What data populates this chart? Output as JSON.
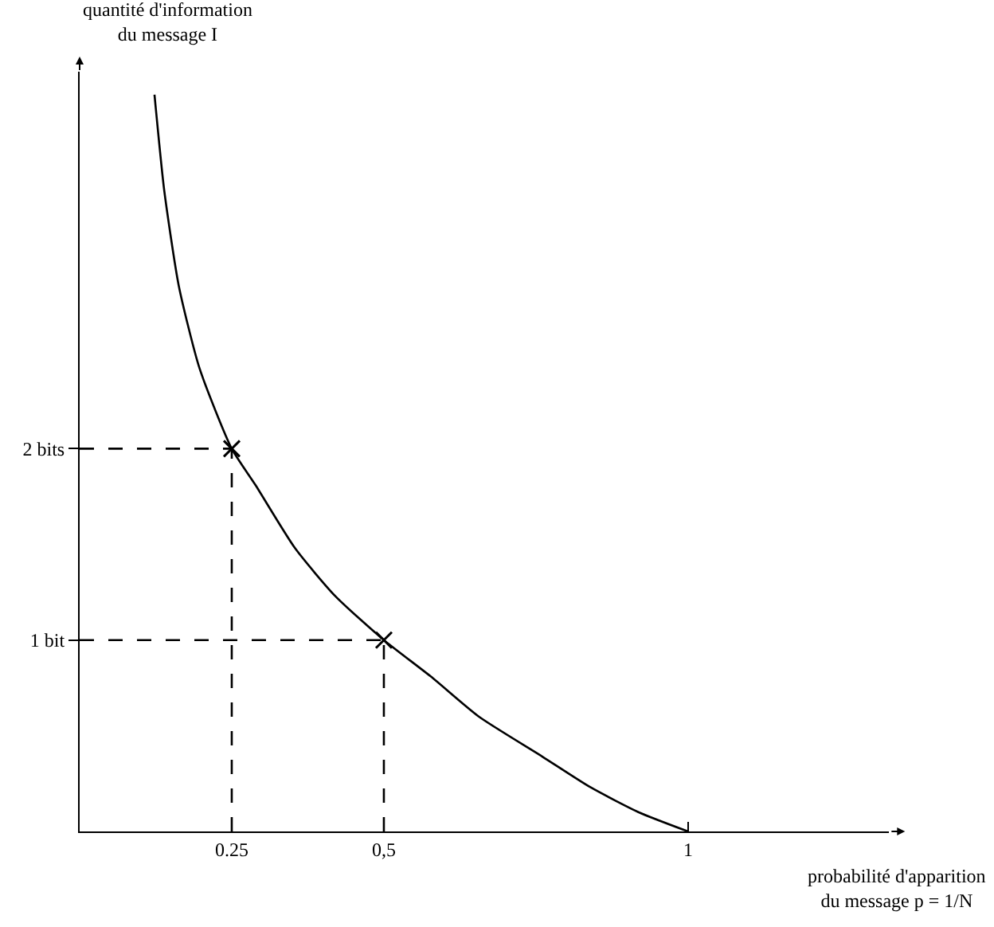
{
  "chart_data": {
    "type": "line",
    "xlabel": "probabilité d'apparition\ndu message p = 1/N",
    "ylabel": "quantité d'information\ndu message I",
    "xlim": [
      0,
      1.33
    ],
    "ylim": [
      0,
      3.97
    ],
    "xticks": [
      {
        "value": 0.25,
        "label": "0.25"
      },
      {
        "value": 0.5,
        "label": "0,5"
      },
      1
    ],
    "yticks": [
      {
        "value": 1,
        "label": "1 bit"
      },
      {
        "value": 2,
        "label": "2 bits"
      }
    ],
    "grid": false,
    "series": [
      {
        "type": "line",
        "color": "#000000",
        "line_style": "solid",
        "marker": "none",
        "x": [
          0.123,
          0.139,
          0.163,
          0.197,
          0.25,
          0.289,
          0.354,
          0.42,
          0.5,
          0.577,
          0.656,
          0.761,
          0.84,
          0.919,
          1
        ],
        "values": [
          3.85,
          3.35,
          2.85,
          2.42,
          2,
          1.81,
          1.48,
          1.23,
          1,
          0.81,
          0.6,
          0.39,
          0.23,
          0.1,
          0
        ]
      },
      {
        "type": "line",
        "color": "#000000",
        "line_style": "dashed",
        "marker": "none",
        "x": [
          0.25,
          0.25
        ],
        "values": [
          0,
          2
        ]
      },
      {
        "type": "line",
        "color": "#000000",
        "line_style": "dashed",
        "marker": "none",
        "x": [
          0,
          0.25
        ],
        "values": [
          2,
          2
        ]
      },
      {
        "type": "line",
        "color": "#000000",
        "line_style": "dashed",
        "marker": "none",
        "x": [
          0.5,
          0.5
        ],
        "values": [
          0,
          1
        ]
      },
      {
        "type": "line",
        "color": "#000000",
        "line_style": "dashed",
        "marker": "none",
        "x": [
          0,
          0.5
        ],
        "values": [
          1,
          1
        ]
      },
      {
        "type": "scatter",
        "color": "#000000",
        "marker": "cross",
        "x": [
          0.25,
          0.5
        ],
        "values": [
          2,
          1
        ]
      }
    ]
  }
}
